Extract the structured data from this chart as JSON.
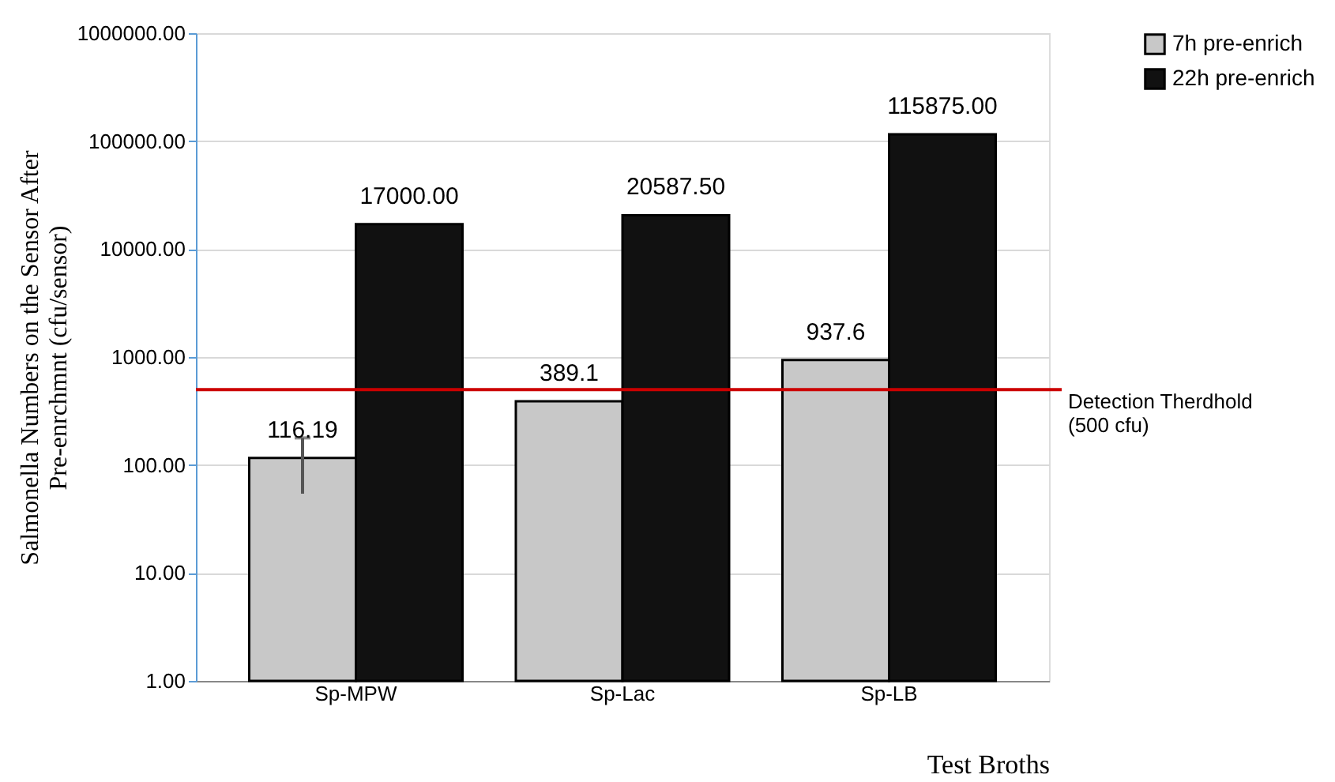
{
  "chart_data": {
    "type": "bar",
    "xlabel": "Test Broths",
    "ylabel": "Salmonella Numbers on the Sensor After Pre-enrchmnt (cfu/sensor)",
    "categories": [
      "Sp-MPW",
      "Sp-Lac",
      "Sp-LB"
    ],
    "series": [
      {
        "name": "7h pre-enrich",
        "color": "#c8c8c8",
        "values": [
          116.19,
          389.1,
          937.6
        ],
        "value_labels": [
          "116.19",
          "389.1",
          "937.6"
        ],
        "errors": [
          62,
          null,
          null
        ]
      },
      {
        "name": "22h pre-enrich",
        "color": "#111111",
        "values": [
          17000,
          20587.5,
          115875
        ],
        "value_labels": [
          "17000.00",
          "20587.50",
          "115875.00"
        ]
      }
    ],
    "log": true,
    "ylim": [
      1,
      1000000
    ],
    "yticks": [
      {
        "value": 1,
        "label": "1.00"
      },
      {
        "value": 10,
        "label": "10.00"
      },
      {
        "value": 100,
        "label": "100.00"
      },
      {
        "value": 1000,
        "label": "1000.00"
      },
      {
        "value": 10000,
        "label": "10000.00"
      },
      {
        "value": 100000,
        "label": "100000.00"
      },
      {
        "value": 1000000,
        "label": "1000000.00"
      }
    ],
    "grid": "y",
    "legend": "right",
    "ref_lines": [
      {
        "axis": "y",
        "value": 500,
        "label": "Detection Therdhold (500 cfu)",
        "color": "#cc0000"
      }
    ]
  }
}
